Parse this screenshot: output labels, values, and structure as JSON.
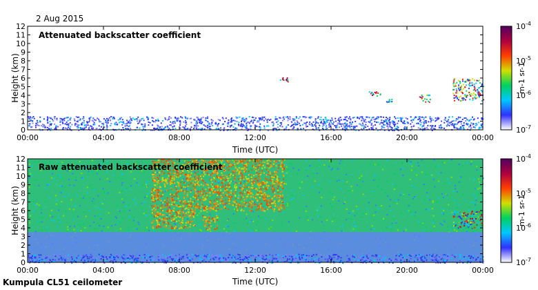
{
  "page": {
    "date": "2 Aug 2015",
    "footer": "Kumpula CL51 ceilometer"
  },
  "chart_data": [
    {
      "type": "heatmap",
      "title": "Attenuated backscatter coefficient",
      "xlabel": "Time (UTC)",
      "ylabel": "Height (km)",
      "x_ticks": [
        "00:00",
        "04:00",
        "08:00",
        "12:00",
        "16:00",
        "20:00",
        "00:00"
      ],
      "y_ticks": [
        "0",
        "1",
        "2",
        "3",
        "4",
        "5",
        "6",
        "7",
        "8",
        "9",
        "10",
        "11",
        "12"
      ],
      "xlim": [
        0,
        24
      ],
      "ylim": [
        0,
        12
      ],
      "colorbar": {
        "scale": "log",
        "range": [
          1e-07,
          0.0001
        ],
        "tick_labels": [
          "10^-7",
          "10^-6",
          "10^-5",
          "10^-4"
        ],
        "unit_label": "m-1 sr-1",
        "colormap": [
          "#ffffff",
          "#3030ff",
          "#00c8ff",
          "#00d060",
          "#d0e000",
          "#ff4000",
          "#b00040",
          "#500060"
        ]
      },
      "features": [
        {
          "label": "boundary layer",
          "t_start": 0,
          "t_end": 24,
          "top_km": 1.6
        },
        {
          "label": "cloud",
          "t_start": 13.3,
          "t_end": 13.8,
          "base_km": 5.6,
          "top_km": 6.3
        },
        {
          "label": "cloud",
          "t_start": 17.9,
          "t_end": 18.6,
          "base_km": 3.9,
          "top_km": 4.5
        },
        {
          "label": "cloud",
          "t_start": 18.9,
          "t_end": 19.2,
          "base_km": 3.2,
          "top_km": 3.6
        },
        {
          "label": "cloud",
          "t_start": 20.6,
          "t_end": 21.2,
          "base_km": 3.2,
          "top_km": 4.1
        },
        {
          "label": "cloud",
          "t_start": 22.4,
          "t_end": 24,
          "base_km": 3.4,
          "top_km": 6.0
        }
      ]
    },
    {
      "type": "heatmap",
      "title": "Raw attenuated backscatter coefficient",
      "xlabel": "Time (UTC)",
      "ylabel": "Height (km)",
      "x_ticks": [
        "00:00",
        "04:00",
        "08:00",
        "12:00",
        "16:00",
        "20:00",
        "00:00"
      ],
      "y_ticks": [
        "0",
        "1",
        "2",
        "3",
        "4",
        "5",
        "6",
        "7",
        "8",
        "9",
        "10",
        "11",
        "12"
      ],
      "xlim": [
        0,
        24
      ],
      "ylim": [
        0,
        12
      ],
      "colorbar": {
        "scale": "log",
        "range": [
          1e-07,
          0.0001
        ],
        "tick_labels": [
          "10^-7",
          "10^-6",
          "10^-5",
          "10^-4"
        ],
        "unit_label": "m-1 sr-1",
        "colormap": [
          "#ffffff",
          "#3030ff",
          "#00c8ff",
          "#00d060",
          "#d0e000",
          "#ff4000",
          "#b00040",
          "#500060"
        ]
      },
      "features": [
        {
          "label": "boundary layer",
          "t_start": 0,
          "t_end": 24,
          "top_km": 1.0
        },
        {
          "label": "daytime noise",
          "t_start": 6.5,
          "t_end": 13.5,
          "base_km": 6.0,
          "top_km": 12
        },
        {
          "label": "aerosol layer",
          "t_start": 6.5,
          "t_end": 8.8,
          "base_km": 4.0,
          "top_km": 6.0
        },
        {
          "label": "aerosol layer",
          "t_start": 9.2,
          "t_end": 10.0,
          "base_km": 3.8,
          "top_km": 5.5
        },
        {
          "label": "cloud",
          "t_start": 22.4,
          "t_end": 24,
          "base_km": 4.0,
          "top_km": 6.0
        }
      ]
    }
  ]
}
